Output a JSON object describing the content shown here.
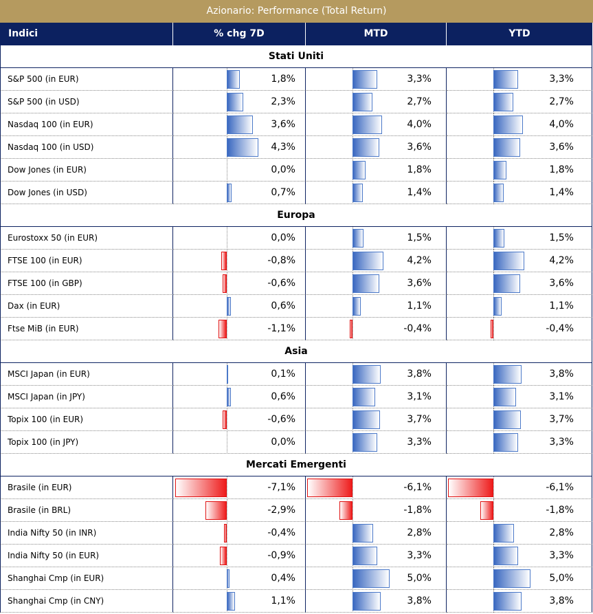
{
  "title": "Azionario: Performance (Total Return)",
  "header": [
    "Indici",
    "% chg 7D",
    "MTD",
    "YTD"
  ],
  "sections": [
    {
      "name": "Stati Uniti",
      "rows": [
        {
          "label": "S&P 500 (in EUR)",
          "values": [
            1.8,
            3.3,
            3.3
          ],
          "value_labels": [
            "1,8%",
            "3,3%",
            "3,3%"
          ]
        },
        {
          "label": "S&P 500 (in USD)",
          "values": [
            2.3,
            2.7,
            2.7
          ],
          "value_labels": [
            "2,3%",
            "2,7%",
            "2,7%"
          ]
        },
        {
          "label": "Nasdaq 100 (in EUR)",
          "values": [
            3.6,
            4.0,
            4.0
          ],
          "value_labels": [
            "3,6%",
            "4,0%",
            "4,0%"
          ]
        },
        {
          "label": "Nasdaq 100 (in USD)",
          "values": [
            4.3,
            3.6,
            3.6
          ],
          "value_labels": [
            "4,3%",
            "3,6%",
            "3,6%"
          ]
        },
        {
          "label": "Dow Jones (in EUR)",
          "values": [
            0.0,
            1.8,
            1.8
          ],
          "value_labels": [
            "0,0%",
            "1,8%",
            "1,8%"
          ]
        },
        {
          "label": "Dow Jones (in USD)",
          "values": [
            0.7,
            1.4,
            1.4
          ],
          "value_labels": [
            "0,7%",
            "1,4%",
            "1,4%"
          ]
        }
      ]
    },
    {
      "name": "Europa",
      "rows": [
        {
          "label": "Eurostoxx 50 (in EUR)",
          "values": [
            0.0,
            1.5,
            1.5
          ],
          "value_labels": [
            "0,0%",
            "1,5%",
            "1,5%"
          ]
        },
        {
          "label": "FTSE 100 (in EUR)",
          "values": [
            -0.8,
            4.2,
            4.2
          ],
          "value_labels": [
            "-0,8%",
            "4,2%",
            "4,2%"
          ]
        },
        {
          "label": "FTSE 100 (in GBP)",
          "values": [
            -0.6,
            3.6,
            3.6
          ],
          "value_labels": [
            "-0,6%",
            "3,6%",
            "3,6%"
          ]
        },
        {
          "label": "Dax (in EUR)",
          "values": [
            0.6,
            1.1,
            1.1
          ],
          "value_labels": [
            "0,6%",
            "1,1%",
            "1,1%"
          ]
        },
        {
          "label": "Ftse MiB (in EUR)",
          "values": [
            -1.1,
            -0.4,
            -0.4
          ],
          "value_labels": [
            "-1,1%",
            "-0,4%",
            "-0,4%"
          ]
        }
      ]
    },
    {
      "name": "Asia",
      "rows": [
        {
          "label": "MSCI Japan (in EUR)",
          "values": [
            0.1,
            3.8,
            3.8
          ],
          "value_labels": [
            "0,1%",
            "3,8%",
            "3,8%"
          ]
        },
        {
          "label": "MSCI Japan (in JPY)",
          "values": [
            0.6,
            3.1,
            3.1
          ],
          "value_labels": [
            "0,6%",
            "3,1%",
            "3,1%"
          ]
        },
        {
          "label": "Topix 100 (in EUR)",
          "values": [
            -0.6,
            3.7,
            3.7
          ],
          "value_labels": [
            "-0,6%",
            "3,7%",
            "3,7%"
          ]
        },
        {
          "label": "Topix 100 (in JPY)",
          "values": [
            0.0,
            3.3,
            3.3
          ],
          "value_labels": [
            "0,0%",
            "3,3%",
            "3,3%"
          ]
        }
      ]
    },
    {
      "name": "Mercati Emergenti",
      "rows": [
        {
          "label": "Brasile (in EUR)",
          "values": [
            -7.1,
            -6.1,
            -6.1
          ],
          "value_labels": [
            "-7,1%",
            "-6,1%",
            "-6,1%"
          ]
        },
        {
          "label": "Brasile (in BRL)",
          "values": [
            -2.9,
            -1.8,
            -1.8
          ],
          "value_labels": [
            "-2,9%",
            "-1,8%",
            "-1,8%"
          ]
        },
        {
          "label": "India Nifty 50 (in INR)",
          "values": [
            -0.4,
            2.8,
            2.8
          ],
          "value_labels": [
            "-0,4%",
            "2,8%",
            "2,8%"
          ]
        },
        {
          "label": "India Nifty 50 (in EUR)",
          "values": [
            -0.9,
            3.3,
            3.3
          ],
          "value_labels": [
            "-0,9%",
            "3,3%",
            "3,3%"
          ]
        },
        {
          "label": "Shanghai Cmp (in EUR)",
          "values": [
            0.4,
            5.0,
            5.0
          ],
          "value_labels": [
            "0,4%",
            "5,0%",
            "5,0%"
          ]
        },
        {
          "label": "Shanghai Cmp (in CNY)",
          "values": [
            1.1,
            3.8,
            3.8
          ],
          "value_labels": [
            "1,1%",
            "3,8%",
            "3,8%"
          ]
        }
      ]
    }
  ]
}
